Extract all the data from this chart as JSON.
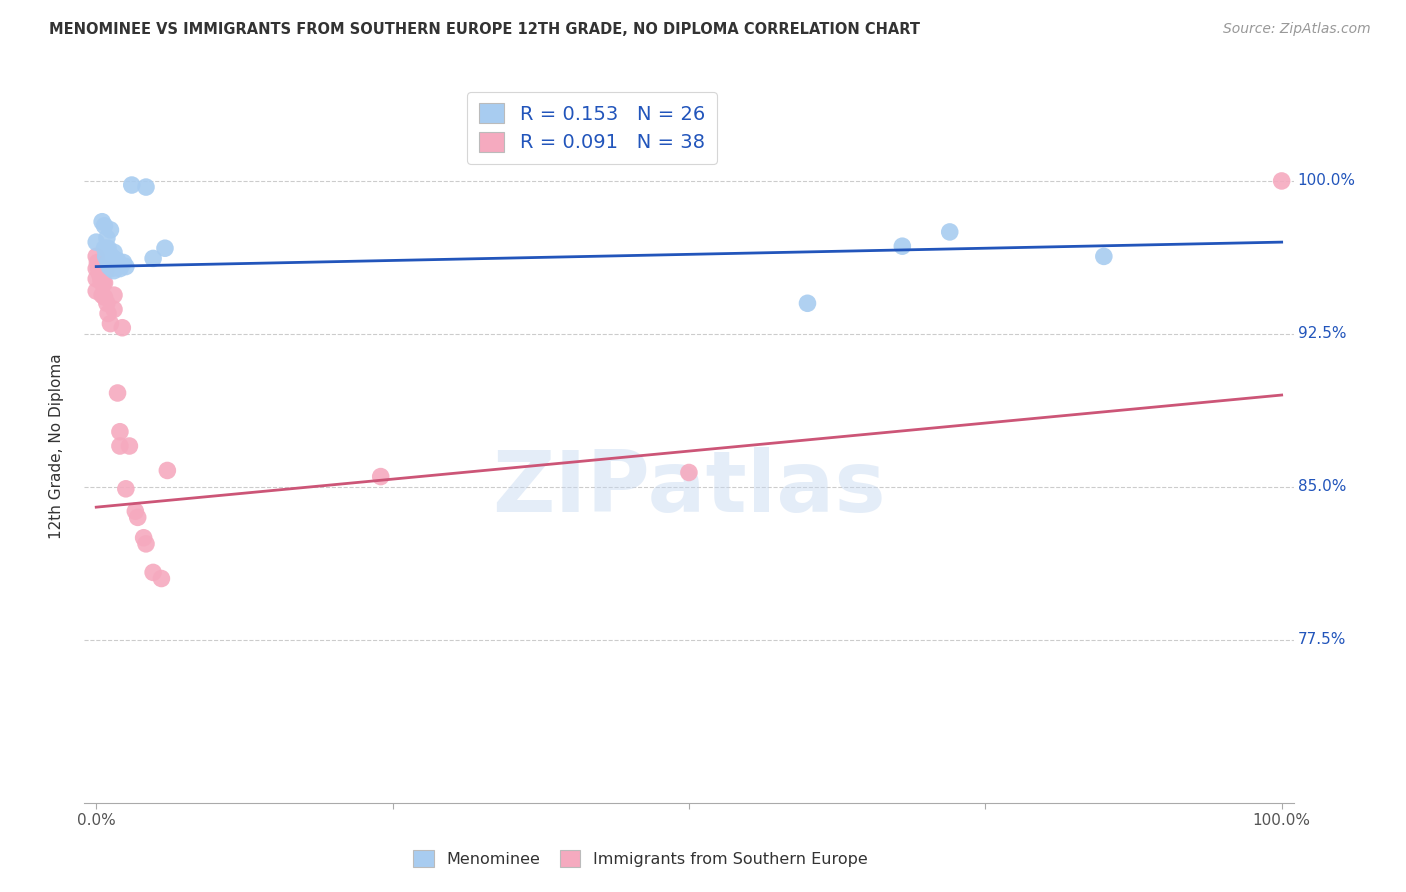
{
  "title": "MENOMINEE VS IMMIGRANTS FROM SOUTHERN EUROPE 12TH GRADE, NO DIPLOMA CORRELATION CHART",
  "source": "Source: ZipAtlas.com",
  "ylabel": "12th Grade, No Diploma",
  "ytick_labels": [
    "100.0%",
    "92.5%",
    "85.0%",
    "77.5%"
  ],
  "ytick_values": [
    1.0,
    0.925,
    0.85,
    0.775
  ],
  "xlim": [
    -0.01,
    1.01
  ],
  "ylim": [
    0.695,
    1.045
  ],
  "legend_r1": "R = 0.153   N = 26",
  "legend_r2": "R = 0.091   N = 38",
  "blue_color": "#A8CCF0",
  "pink_color": "#F5AABF",
  "blue_line_color": "#2255BB",
  "pink_line_color": "#CC5577",
  "blue_scatter": [
    [
      0.0,
      0.97
    ],
    [
      0.005,
      0.98
    ],
    [
      0.007,
      0.978
    ],
    [
      0.007,
      0.967
    ],
    [
      0.008,
      0.963
    ],
    [
      0.009,
      0.972
    ],
    [
      0.01,
      0.967
    ],
    [
      0.01,
      0.96
    ],
    [
      0.011,
      0.958
    ],
    [
      0.012,
      0.976
    ],
    [
      0.013,
      0.963
    ],
    [
      0.013,
      0.957
    ],
    [
      0.015,
      0.965
    ],
    [
      0.015,
      0.956
    ],
    [
      0.018,
      0.961
    ],
    [
      0.02,
      0.957
    ],
    [
      0.023,
      0.96
    ],
    [
      0.025,
      0.958
    ],
    [
      0.03,
      0.998
    ],
    [
      0.042,
      0.997
    ],
    [
      0.048,
      0.962
    ],
    [
      0.058,
      0.967
    ],
    [
      0.6,
      0.94
    ],
    [
      0.68,
      0.968
    ],
    [
      0.72,
      0.975
    ],
    [
      0.85,
      0.963
    ]
  ],
  "pink_scatter": [
    [
      0.0,
      0.963
    ],
    [
      0.0,
      0.957
    ],
    [
      0.0,
      0.952
    ],
    [
      0.0,
      0.946
    ],
    [
      0.001,
      0.96
    ],
    [
      0.002,
      0.957
    ],
    [
      0.003,
      0.954
    ],
    [
      0.004,
      0.951
    ],
    [
      0.005,
      0.957
    ],
    [
      0.005,
      0.95
    ],
    [
      0.005,
      0.944
    ],
    [
      0.006,
      0.956
    ],
    [
      0.006,
      0.95
    ],
    [
      0.007,
      0.957
    ],
    [
      0.007,
      0.95
    ],
    [
      0.007,
      0.943
    ],
    [
      0.008,
      0.956
    ],
    [
      0.009,
      0.94
    ],
    [
      0.01,
      0.935
    ],
    [
      0.012,
      0.93
    ],
    [
      0.015,
      0.944
    ],
    [
      0.015,
      0.937
    ],
    [
      0.018,
      0.896
    ],
    [
      0.02,
      0.877
    ],
    [
      0.02,
      0.87
    ],
    [
      0.022,
      0.928
    ],
    [
      0.025,
      0.849
    ],
    [
      0.028,
      0.87
    ],
    [
      0.033,
      0.838
    ],
    [
      0.035,
      0.835
    ],
    [
      0.04,
      0.825
    ],
    [
      0.042,
      0.822
    ],
    [
      0.048,
      0.808
    ],
    [
      0.055,
      0.805
    ],
    [
      0.06,
      0.858
    ],
    [
      0.24,
      0.855
    ],
    [
      0.5,
      0.857
    ],
    [
      1.0,
      1.0
    ]
  ],
  "blue_line_y": [
    0.958,
    0.97
  ],
  "pink_line_y": [
    0.84,
    0.895
  ],
  "watermark_text": "ZIPatlas",
  "background_color": "#FFFFFF",
  "grid_color": "#CCCCCC"
}
